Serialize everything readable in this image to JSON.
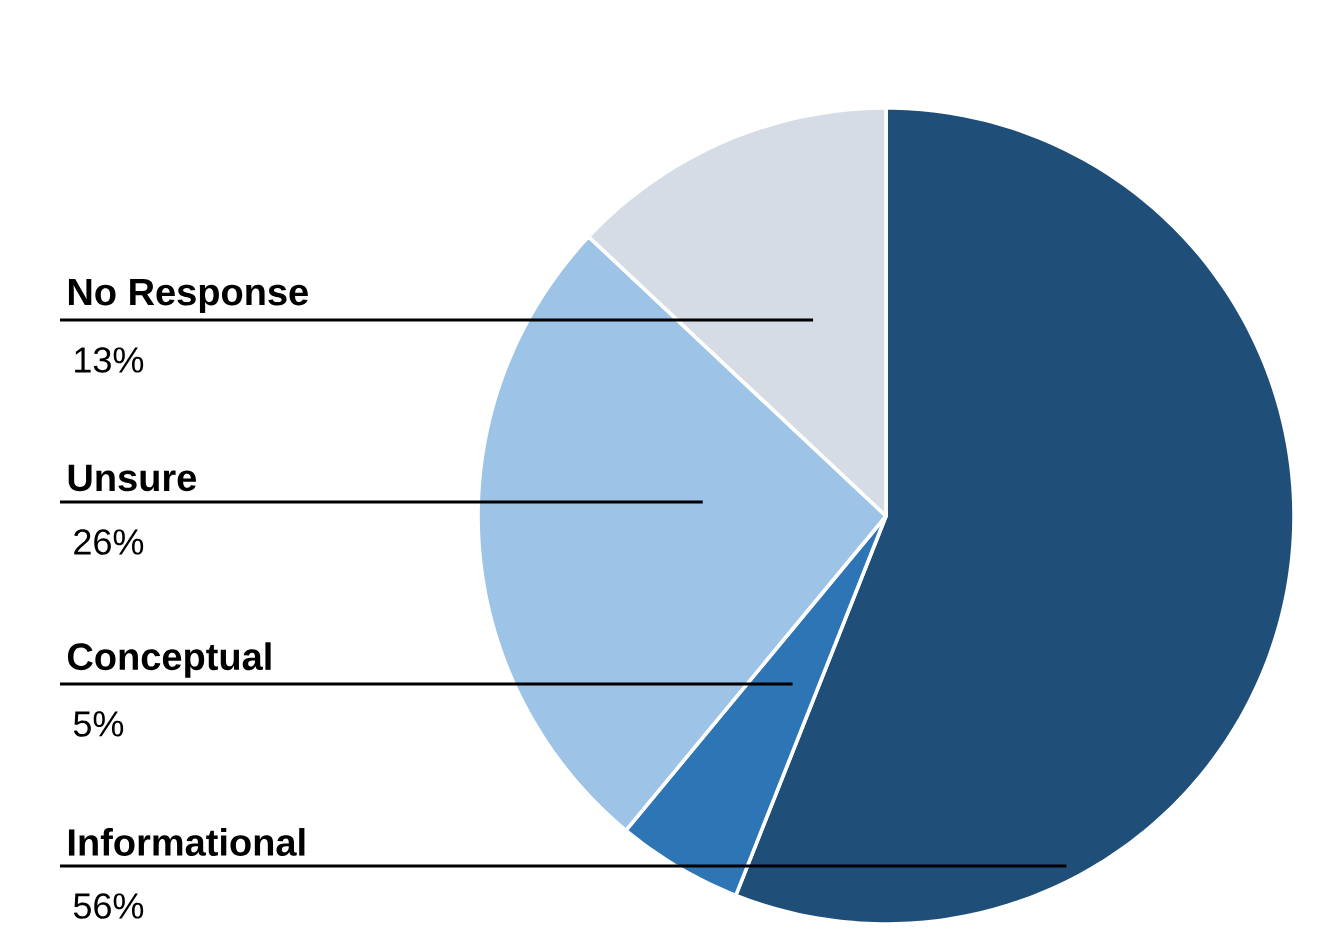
{
  "chart_data": {
    "type": "pie",
    "categories": [
      "Informational",
      "Conceptual",
      "Unsure",
      "No Response"
    ],
    "values": [
      56,
      5,
      26,
      13
    ],
    "colors": [
      "#1f4e79",
      "#2e75b6",
      "#9dc3e6",
      "#d6dce5"
    ],
    "value_labels": [
      "56%",
      "5%",
      "26%",
      "13%"
    ]
  }
}
